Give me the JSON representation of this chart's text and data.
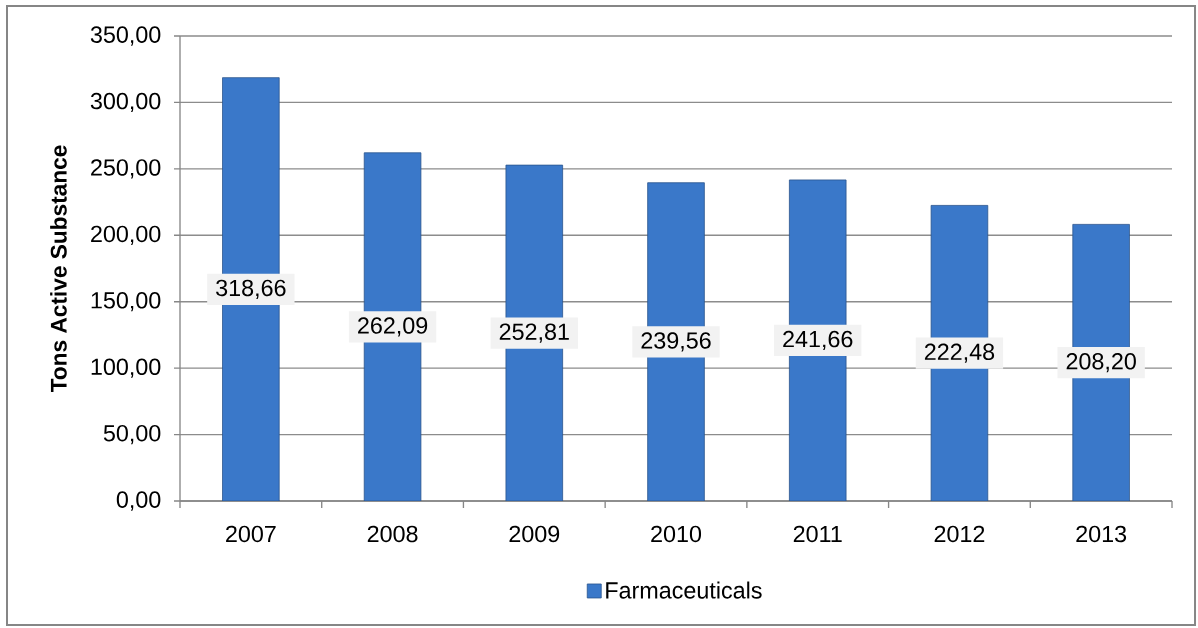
{
  "chart_data": {
    "type": "bar",
    "ylabel": "Tons Active Substance",
    "categories": [
      "2007",
      "2008",
      "2009",
      "2010",
      "2011",
      "2012",
      "2013"
    ],
    "series": [
      {
        "name": "Farmaceuticals",
        "color": "#3a78c9",
        "values": [
          318.66,
          262.09,
          252.81,
          239.56,
          241.66,
          222.48,
          208.2
        ],
        "value_labels": [
          "318,66",
          "262,09",
          "252,81",
          "239,56",
          "241,66",
          "222,48",
          "208,20"
        ]
      }
    ],
    "ylim": [
      0,
      350
    ],
    "yticks": [
      {
        "value": 0,
        "label": "0,00"
      },
      {
        "value": 50,
        "label": "50,00"
      },
      {
        "value": 100,
        "label": "100,00"
      },
      {
        "value": 150,
        "label": "150,00"
      },
      {
        "value": 200,
        "label": "200,00"
      },
      {
        "value": 250,
        "label": "250,00"
      },
      {
        "value": 300,
        "label": "300,00"
      },
      {
        "value": 350,
        "label": "350,00"
      }
    ],
    "grid": "y",
    "legend": "bottom"
  }
}
